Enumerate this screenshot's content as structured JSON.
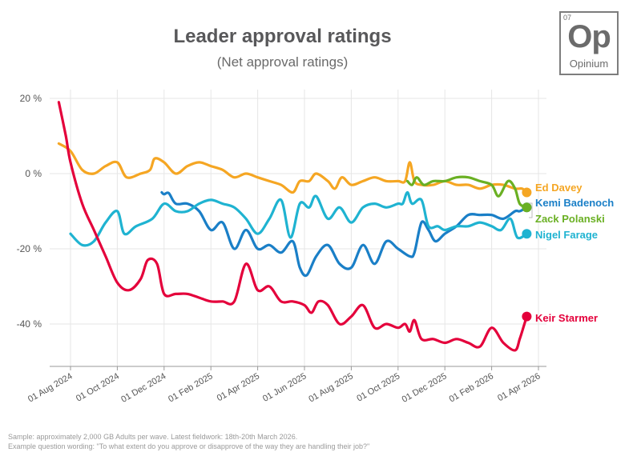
{
  "title": "Leader approval ratings",
  "subtitle": "(Net approval ratings)",
  "logo": {
    "number": "07",
    "symbol": "Op",
    "name": "Opinium"
  },
  "footer": {
    "sample": "Sample: approximately 2,000 GB Adults per wave. Latest fieldwork: 18th-20th March 2026.",
    "wording": "Example question wording: \"To what extent do you approve or disapprove of the way they are handling their job?\""
  },
  "chart_data": {
    "type": "line",
    "title": "Leader approval ratings",
    "subtitle": "(Net approval ratings)",
    "xlabel": "",
    "ylabel": "",
    "ylim": [
      -52,
      22
    ],
    "y_ticks": [
      20,
      0,
      -20,
      -40
    ],
    "y_tick_labels": [
      "20 %",
      "0 %",
      "-20 %",
      "-40 %"
    ],
    "x_range_months": [
      -0.8,
      20.4
    ],
    "x_ticks": [
      0,
      2,
      4,
      6,
      8,
      10,
      12,
      14,
      16,
      18,
      20
    ],
    "x_tick_labels": [
      "01 Aug 2024",
      "01 Oct 2024",
      "01 Dec 2024",
      "01 Feb 2025",
      "01 Apr 2025",
      "01 Jun 2025",
      "01 Aug 2025",
      "01 Oct 2025",
      "01 Dec 2025",
      "01 Feb 2026",
      "01 Apr 2026"
    ],
    "grid": true,
    "legend": "right, labels at line ends",
    "series": [
      {
        "name": "Ed Davey",
        "color": "#F5A623",
        "points": [
          [
            -0.5,
            8
          ],
          [
            0,
            6
          ],
          [
            0.5,
            1
          ],
          [
            1,
            0
          ],
          [
            1.5,
            2
          ],
          [
            2,
            3
          ],
          [
            2.4,
            -1
          ],
          [
            3,
            0
          ],
          [
            3.4,
            1
          ],
          [
            3.6,
            4
          ],
          [
            4,
            3
          ],
          [
            4.5,
            0
          ],
          [
            5,
            2
          ],
          [
            5.5,
            3
          ],
          [
            6,
            2
          ],
          [
            6.5,
            1
          ],
          [
            7,
            -1
          ],
          [
            7.5,
            0
          ],
          [
            8,
            -1
          ],
          [
            8.5,
            -2
          ],
          [
            9,
            -3
          ],
          [
            9.5,
            -5
          ],
          [
            9.8,
            -2
          ],
          [
            10.2,
            -2
          ],
          [
            10.5,
            0
          ],
          [
            11,
            -2
          ],
          [
            11.3,
            -4
          ],
          [
            11.6,
            -1
          ],
          [
            12,
            -3
          ],
          [
            12.5,
            -2
          ],
          [
            13,
            -1
          ],
          [
            13.5,
            -2
          ],
          [
            14,
            -2
          ],
          [
            14.3,
            -2
          ],
          [
            14.5,
            3
          ],
          [
            14.7,
            -2
          ],
          [
            15,
            -3
          ],
          [
            15.5,
            -3
          ],
          [
            16,
            -2
          ],
          [
            16.5,
            -3
          ],
          [
            17,
            -3
          ],
          [
            17.5,
            -4
          ],
          [
            18,
            -3
          ],
          [
            18.5,
            -3
          ],
          [
            19,
            -4
          ],
          [
            19.3,
            -4
          ],
          [
            19.5,
            -5
          ]
        ]
      },
      {
        "name": "Kemi Badenoch",
        "color": "#1A7FC7",
        "points": [
          [
            3.9,
            -5
          ],
          [
            4,
            -5.5
          ],
          [
            4.2,
            -5.2
          ],
          [
            4.5,
            -8
          ],
          [
            5,
            -8
          ],
          [
            5.5,
            -10
          ],
          [
            6,
            -15
          ],
          [
            6.5,
            -13
          ],
          [
            7,
            -20
          ],
          [
            7.5,
            -15
          ],
          [
            8,
            -20
          ],
          [
            8.5,
            -19
          ],
          [
            9,
            -21
          ],
          [
            9.5,
            -18
          ],
          [
            9.8,
            -25
          ],
          [
            10.1,
            -27
          ],
          [
            10.5,
            -22
          ],
          [
            11,
            -19
          ],
          [
            11.5,
            -24
          ],
          [
            12,
            -25
          ],
          [
            12.5,
            -19
          ],
          [
            13,
            -24
          ],
          [
            13.5,
            -18
          ],
          [
            14,
            -20
          ],
          [
            14.5,
            -22
          ],
          [
            14.7,
            -21
          ],
          [
            15,
            -13
          ],
          [
            15.3,
            -15
          ],
          [
            15.6,
            -18
          ],
          [
            16,
            -16
          ],
          [
            16.5,
            -14
          ],
          [
            17,
            -11
          ],
          [
            17.5,
            -11
          ],
          [
            18,
            -11
          ],
          [
            18.5,
            -12
          ],
          [
            19,
            -10
          ],
          [
            19.2,
            -10
          ],
          [
            19.5,
            -9
          ]
        ]
      },
      {
        "name": "Zack Polanski",
        "color": "#6AB023",
        "points": [
          [
            14.4,
            -2
          ],
          [
            14.6,
            -3
          ],
          [
            14.8,
            -1
          ],
          [
            15.1,
            -3
          ],
          [
            15.5,
            -2
          ],
          [
            16,
            -2
          ],
          [
            16.5,
            -1
          ],
          [
            17,
            -1
          ],
          [
            17.5,
            -2
          ],
          [
            18,
            -3
          ],
          [
            18.3,
            -6
          ],
          [
            18.7,
            -2
          ],
          [
            19,
            -4
          ],
          [
            19.2,
            -8
          ],
          [
            19.5,
            -9
          ]
        ]
      },
      {
        "name": "Nigel Farage",
        "color": "#1FB3D1",
        "points": [
          [
            0,
            -16
          ],
          [
            0.5,
            -19
          ],
          [
            1,
            -18
          ],
          [
            1.5,
            -13
          ],
          [
            2,
            -10
          ],
          [
            2.3,
            -16
          ],
          [
            2.8,
            -14
          ],
          [
            3.5,
            -12
          ],
          [
            4,
            -8
          ],
          [
            4.5,
            -10
          ],
          [
            5,
            -10
          ],
          [
            5.5,
            -8
          ],
          [
            6,
            -7
          ],
          [
            6.5,
            -8
          ],
          [
            7,
            -9
          ],
          [
            7.5,
            -12
          ],
          [
            8,
            -16
          ],
          [
            8.5,
            -12
          ],
          [
            9,
            -7
          ],
          [
            9.4,
            -17
          ],
          [
            9.8,
            -8
          ],
          [
            10.2,
            -9
          ],
          [
            10.5,
            -6
          ],
          [
            11,
            -12
          ],
          [
            11.5,
            -9
          ],
          [
            12,
            -13
          ],
          [
            12.5,
            -9
          ],
          [
            13,
            -8
          ],
          [
            13.5,
            -9
          ],
          [
            14,
            -8
          ],
          [
            14.2,
            -8
          ],
          [
            14.4,
            -5
          ],
          [
            14.6,
            -8
          ],
          [
            15,
            -7
          ],
          [
            15.3,
            -14
          ],
          [
            15.7,
            -14
          ],
          [
            16,
            -15
          ],
          [
            16.5,
            -14
          ],
          [
            17,
            -14
          ],
          [
            17.5,
            -13
          ],
          [
            18,
            -14
          ],
          [
            18.4,
            -15
          ],
          [
            18.8,
            -12
          ],
          [
            19.1,
            -17
          ],
          [
            19.5,
            -16
          ]
        ]
      },
      {
        "name": "Keir Starmer",
        "color": "#E4003B",
        "points": [
          [
            -0.5,
            19
          ],
          [
            -0.2,
            10
          ],
          [
            0,
            3
          ],
          [
            0.5,
            -8
          ],
          [
            1,
            -15
          ],
          [
            1.5,
            -22
          ],
          [
            2,
            -29
          ],
          [
            2.5,
            -31
          ],
          [
            3,
            -28
          ],
          [
            3.3,
            -23
          ],
          [
            3.7,
            -24
          ],
          [
            4,
            -32
          ],
          [
            4.5,
            -32
          ],
          [
            5,
            -32
          ],
          [
            5.5,
            -33
          ],
          [
            6,
            -34
          ],
          [
            6.5,
            -34
          ],
          [
            7,
            -34
          ],
          [
            7.5,
            -24
          ],
          [
            8,
            -31
          ],
          [
            8.5,
            -30
          ],
          [
            9,
            -34
          ],
          [
            9.5,
            -34
          ],
          [
            10,
            -35
          ],
          [
            10.3,
            -37
          ],
          [
            10.6,
            -34
          ],
          [
            11,
            -35
          ],
          [
            11.5,
            -40
          ],
          [
            12,
            -38
          ],
          [
            12.5,
            -35
          ],
          [
            13,
            -41
          ],
          [
            13.5,
            -40
          ],
          [
            14,
            -41
          ],
          [
            14.3,
            -40
          ],
          [
            14.5,
            -42
          ],
          [
            14.7,
            -39
          ],
          [
            15,
            -44
          ],
          [
            15.5,
            -44
          ],
          [
            16,
            -45
          ],
          [
            16.5,
            -44
          ],
          [
            17,
            -45
          ],
          [
            17.5,
            -46
          ],
          [
            18,
            -41
          ],
          [
            18.5,
            -45
          ],
          [
            19,
            -47
          ],
          [
            19.2,
            -44
          ],
          [
            19.4,
            -40
          ],
          [
            19.5,
            -38
          ]
        ]
      }
    ]
  }
}
